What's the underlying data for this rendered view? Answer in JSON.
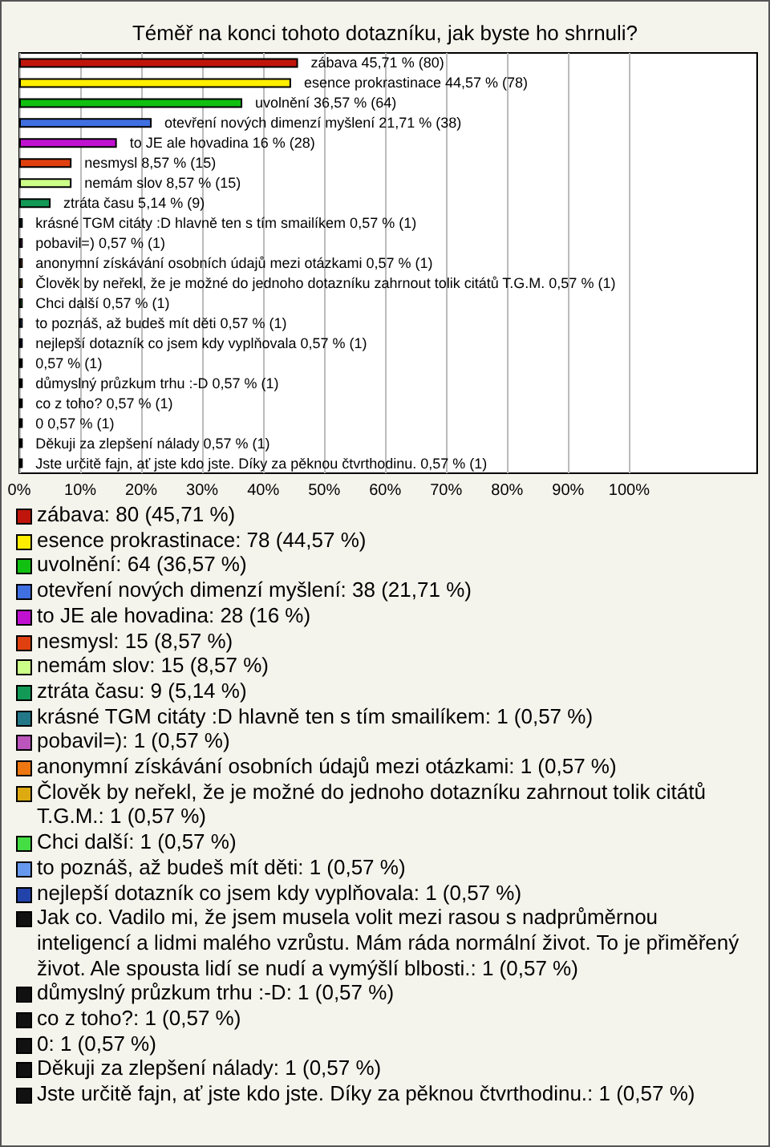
{
  "chart_data": {
    "type": "bar",
    "orientation": "horizontal",
    "title": "Téměř na konci tohoto dotazníku, jak byste ho shrnuli?",
    "categories": [
      "zábava",
      "esence prokrastinace",
      "uvolnění",
      "otevření nových dimenzí myšlení",
      "to JE ale hovadina",
      "nesmysl",
      "nemám slov",
      "ztráta času",
      "krásné TGM citáty :D hlavně ten s tím smailíkem",
      "pobavil=)",
      "anonymní získávání osobních údajů mezi otázkami",
      "Člověk by neřekl, že je možné do jednoho dotazníku zahrnout tolik citátů T.G.M.",
      "Chci další",
      "to poznáš, až budeš mít děti",
      "nejlepší dotazník co jsem kdy vyplňovala",
      null,
      "důmyslný průzkum trhu :-D",
      "co z toho?",
      "0",
      "Děkuji za zlepšení nálady",
      "Jste určitě fajn, ať jste kdo jste. Díky za pěknou čtvrthodinu."
    ],
    "values": [
      45.71,
      44.57,
      36.57,
      21.71,
      16,
      8.57,
      8.57,
      5.14,
      0.57,
      0.57,
      0.57,
      0.57,
      0.57,
      0.57,
      0.57,
      0.57,
      0.57,
      0.57,
      0.57,
      0.57,
      0.57
    ],
    "value_labels": [
      "45,71 % (80)",
      "44,57 % (78)",
      "36,57 % (64)",
      "21,71 % (38)",
      "16 % (28)",
      "8,57 % (15)",
      "8,57 % (15)",
      "5,14 % (9)",
      "0,57 % (1)",
      "0,57 % (1)",
      "0,57 % (1)",
      "0,57 % (1)",
      "0,57 % (1)",
      "0,57 % (1)",
      "0,57 % (1)",
      "0,57 % (1)",
      "0,57 % (1)",
      "0,57 % (1)",
      "0,57 % (1)",
      "0,57 % (1)",
      "0,57 % (1)"
    ],
    "colors": [
      "#c0150b",
      "#ffee00",
      "#11c011",
      "#3f6fe0",
      "#c010d0",
      "#e04010",
      "#ccff88",
      "#119955",
      "#227788",
      "#bb55bb",
      "#ee7711",
      "#ddaa11",
      "#44dd44",
      "#6699ee",
      "#2244aa",
      "#111111",
      "#111111",
      "#111111",
      "#111111",
      "#111111",
      "#111111"
    ],
    "xlim": [
      0,
      121
    ],
    "xticks": [
      {
        "value": 0,
        "label": "0%"
      },
      {
        "value": 10,
        "label": "10%"
      },
      {
        "value": 20,
        "label": "20%"
      },
      {
        "value": 30,
        "label": "30%"
      },
      {
        "value": 40,
        "label": "40%"
      },
      {
        "value": 50,
        "label": "50%"
      },
      {
        "value": 60,
        "label": "60%"
      },
      {
        "value": 70,
        "label": "70%"
      },
      {
        "value": 80,
        "label": "80%"
      },
      {
        "value": 90,
        "label": "90%"
      },
      {
        "value": 100,
        "label": "100%"
      }
    ],
    "grid": "x",
    "tick_labels": "x",
    "annotations": [
      "zábava: 80 (45,71 %)",
      "esence prokrastinace: 78 (44,57 %)",
      "uvolnění: 64 (36,57 %)",
      "otevření nových dimenzí myšlení: 38 (21,71 %)",
      "to JE ale hovadina: 28 (16 %)",
      "nesmysl: 15 (8,57 %)",
      "nemám slov: 15 (8,57 %)",
      "ztráta času: 9 (5,14 %)",
      "krásné TGM citáty :D hlavně ten s tím smailíkem: 1 (0,57 %)",
      "pobavil=): 1 (0,57 %)",
      "anonymní získávání osobních údajů mezi otázkami: 1 (0,57 %)",
      "Člověk by neřekl, že je možné do jednoho dotazníku zahrnout tolik citátů T.G.M.: 1 (0,57 %)",
      "Chci další: 1 (0,57 %)",
      "to poznáš, až budeš mít děti: 1 (0,57 %)",
      "nejlepší dotazník co jsem kdy vyplňovala: 1 (0,57 %)",
      "Jak co. Vadilo mi, že jsem musela volit mezi rasou s nadprůměrnou inteligencí a lidmi malého vzrůstu. Mám ráda normální život. To je přiměřený život. Ale spousta lidí se nudí a vymýšlí blbosti.: 1 (0,57 %)",
      "důmyslný průzkum trhu :-D: 1 (0,57 %)",
      "co z toho?: 1 (0,57 %)",
      "0: 1 (0,57 %)",
      "Děkuji za zlepšení nálady: 1 (0,57 %)",
      "Jste určitě fajn, ať jste kdo jste. Díky za pěknou čtvrthodinu.: 1 (0,57 %)"
    ]
  }
}
